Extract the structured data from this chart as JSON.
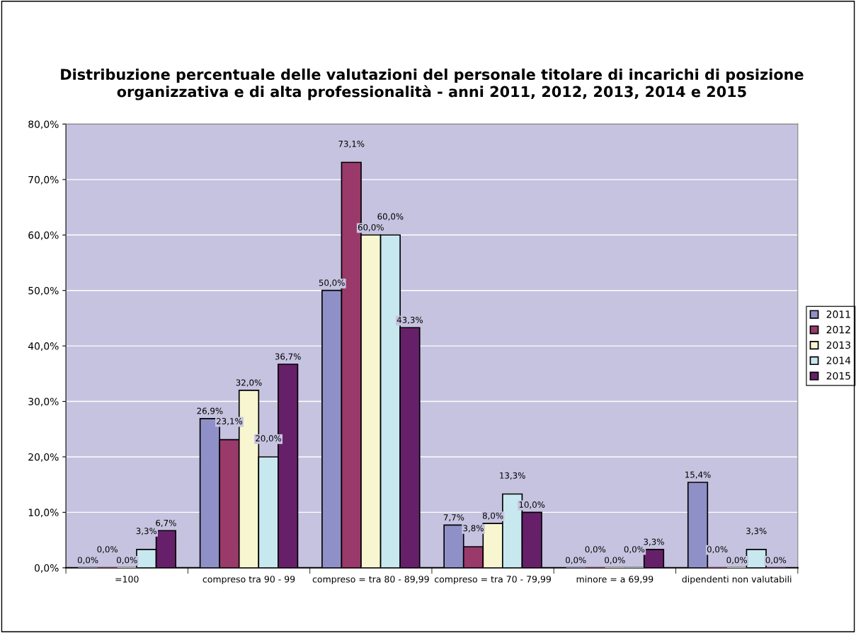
{
  "chart_data": {
    "type": "bar",
    "title": "Distribuzione percentuale delle valutazioni del personale titolare di incarichi di posizione organizzativa e di alta professionalità - anni 2011, 2012, 2013, 2014 e 2015",
    "categories": [
      "=100",
      "compreso tra 90 - 99",
      "compreso = tra 80 - 89,99",
      "compreso = tra 70 - 79,99",
      "minore = a 69,99",
      "dipendenti non valutabili"
    ],
    "series": [
      {
        "name": "2011",
        "color": "#9090c8",
        "values": [
          0.0,
          26.9,
          50.0,
          7.7,
          0.0,
          15.4
        ],
        "value_labels": [
          "0,0%",
          "26,9%",
          "50,0%",
          "7,7%",
          "0,0%",
          "15,4%"
        ]
      },
      {
        "name": "2012",
        "color": "#993a6a",
        "values": [
          0.0,
          23.1,
          73.1,
          3.8,
          0.0,
          0.0
        ],
        "value_labels": [
          "0,0%",
          "23,1%",
          "73,1%",
          "3,8%",
          "0,0%",
          "0,0%"
        ]
      },
      {
        "name": "2013",
        "color": "#f8f6d0",
        "values": [
          0.0,
          32.0,
          60.0,
          8.0,
          0.0,
          0.0
        ],
        "value_labels": [
          "0,0%",
          "32,0%",
          "60,0%",
          "8,0%",
          "0,0%",
          "0,0%"
        ]
      },
      {
        "name": "2014",
        "color": "#c8e8f0",
        "values": [
          3.3,
          20.0,
          60.0,
          13.3,
          0.0,
          3.3
        ],
        "value_labels": [
          "3,3%",
          "20,0%",
          "60,0%",
          "13,3%",
          "0,0%",
          "3,3%"
        ]
      },
      {
        "name": "2015",
        "color": "#66206a",
        "values": [
          6.7,
          36.7,
          43.3,
          10.0,
          3.3,
          0.0
        ],
        "value_labels": [
          "6,7%",
          "36,7%",
          "43,3%",
          "10,0%",
          "3,3%",
          "0,0%"
        ]
      }
    ],
    "ylim": [
      0,
      80
    ],
    "yticks": [
      {
        "value": 0,
        "label": "0,0%"
      },
      {
        "value": 10,
        "label": "10,0%"
      },
      {
        "value": 20,
        "label": "20,0%"
      },
      {
        "value": 30,
        "label": "30,0%"
      },
      {
        "value": 40,
        "label": "40,0%"
      },
      {
        "value": 50,
        "label": "50,0%"
      },
      {
        "value": 60,
        "label": "60,0%"
      },
      {
        "value": 70,
        "label": "70,0%"
      },
      {
        "value": 80,
        "label": "80,0%"
      }
    ],
    "grid": "y",
    "legend": "right"
  }
}
